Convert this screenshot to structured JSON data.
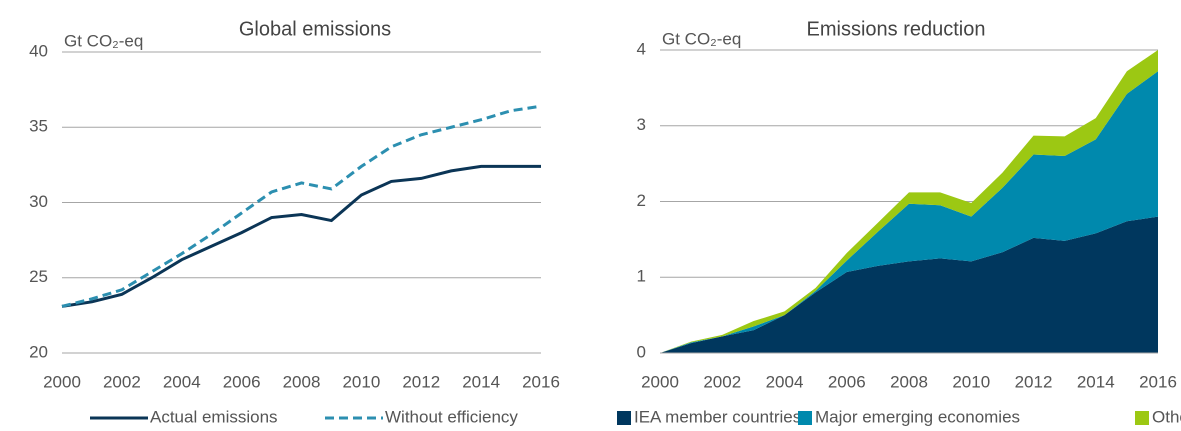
{
  "chart_data": [
    {
      "type": "line",
      "title": "Global emissions",
      "y_label": "Gt CO₂-eq",
      "x": [
        2000,
        2001,
        2002,
        2003,
        2004,
        2005,
        2006,
        2007,
        2008,
        2009,
        2010,
        2011,
        2012,
        2013,
        2014,
        2015,
        2016
      ],
      "xlim": [
        2000,
        2016
      ],
      "xticks": [
        2000,
        2002,
        2004,
        2006,
        2008,
        2010,
        2012,
        2014,
        2016
      ],
      "ylim": [
        20,
        40
      ],
      "yticks": [
        20,
        25,
        30,
        35,
        40
      ],
      "grid": true,
      "legend": "bottom",
      "series": [
        {
          "name": "Actual emissions",
          "color": "#0b3556",
          "dashed": false,
          "values": [
            23.1,
            23.4,
            23.9,
            25.0,
            26.2,
            27.1,
            28.0,
            29.0,
            29.2,
            28.8,
            30.5,
            31.4,
            31.6,
            32.1,
            32.4,
            32.4,
            32.4
          ]
        },
        {
          "name": "Without efficiency",
          "color": "#2c8fb0",
          "dashed": true,
          "values": [
            23.1,
            23.6,
            24.2,
            25.4,
            26.6,
            27.9,
            29.3,
            30.7,
            31.3,
            30.9,
            32.4,
            33.7,
            34.5,
            35.0,
            35.5,
            36.1,
            36.4
          ]
        }
      ]
    },
    {
      "type": "stacked_area",
      "title": "Emissions reduction",
      "y_label": "Gt CO₂-eq",
      "x": [
        2000,
        2001,
        2002,
        2003,
        2004,
        2005,
        2006,
        2007,
        2008,
        2009,
        2010,
        2011,
        2012,
        2013,
        2014,
        2015,
        2016
      ],
      "xlim": [
        2000,
        2016
      ],
      "xticks": [
        2000,
        2002,
        2004,
        2006,
        2008,
        2010,
        2012,
        2014,
        2016
      ],
      "ylim": [
        0,
        4
      ],
      "yticks": [
        0,
        1,
        2,
        3,
        4
      ],
      "grid": true,
      "legend": "bottom",
      "series": [
        {
          "name": "IEA member countries",
          "color": "#00375e",
          "values": [
            0,
            0.13,
            0.22,
            0.3,
            0.5,
            0.8,
            1.07,
            1.15,
            1.21,
            1.25,
            1.21,
            1.33,
            1.52,
            1.48,
            1.58,
            1.74,
            1.8
          ]
        },
        {
          "name": "Major emerging economies",
          "color": "#0089ad",
          "values": [
            0,
            0.01,
            0,
            0.05,
            0,
            0.02,
            0.15,
            0.45,
            0.76,
            0.7,
            0.59,
            0.85,
            1.1,
            1.12,
            1.24,
            1.68,
            1.92
          ]
        },
        {
          "name": "Other",
          "color": "#9cc813",
          "values": [
            0,
            0.01,
            0.02,
            0.07,
            0.05,
            0.04,
            0.1,
            0.12,
            0.15,
            0.17,
            0.18,
            0.2,
            0.25,
            0.26,
            0.28,
            0.3,
            0.28
          ]
        }
      ]
    }
  ]
}
